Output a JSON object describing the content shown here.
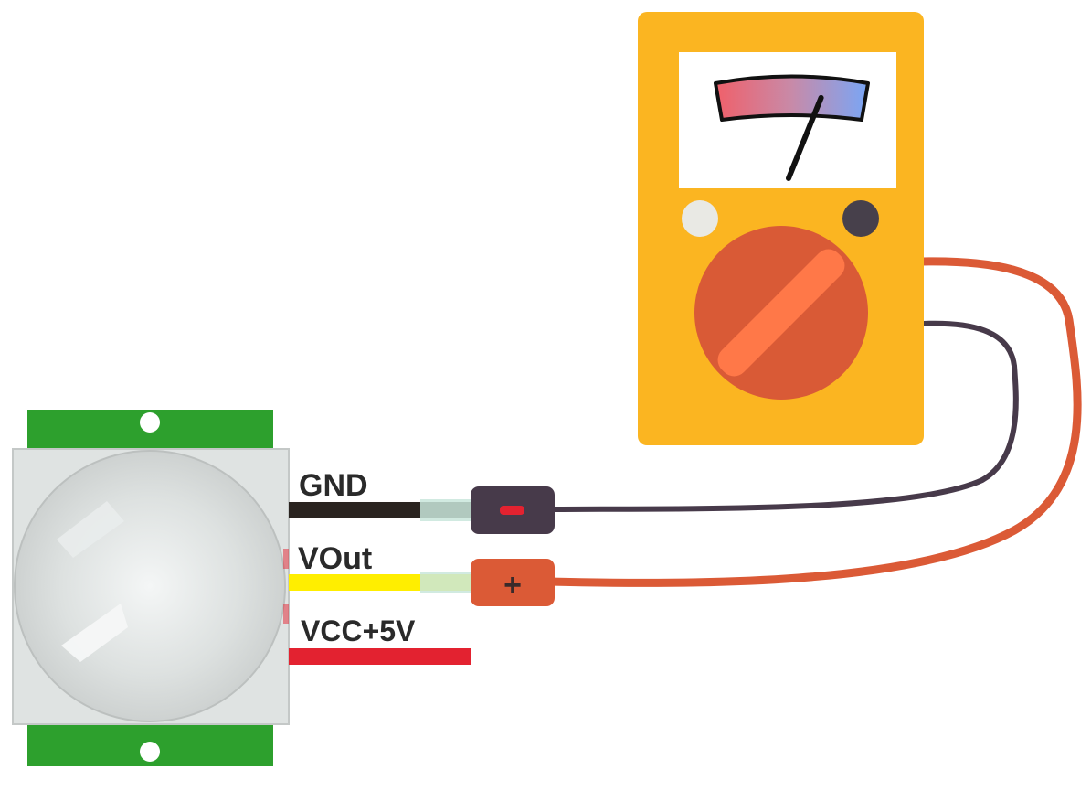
{
  "wires": {
    "gnd_label": "GND",
    "vout_label": "VOut",
    "vcc_label": "VCC+5V"
  },
  "probes": {
    "negative_symbol": "-",
    "positive_symbol": "+"
  },
  "colors": {
    "multimeter_body": "#fbb521",
    "multimeter_screen": "#ffffff",
    "dial": "#d95a36",
    "dial_grip": "#ff7848",
    "gnd_wire": "#2a2420",
    "vout_wire": "#ffee00",
    "vcc_wire": "#e32230",
    "black_lead": "#473a4a",
    "red_lead": "#db5a36",
    "sensor_board": "#2da02d",
    "sensor_housing": "#dfe3e2",
    "sensor_dome": "#d7dbda"
  },
  "meter": {
    "needle_level": 0.72
  }
}
